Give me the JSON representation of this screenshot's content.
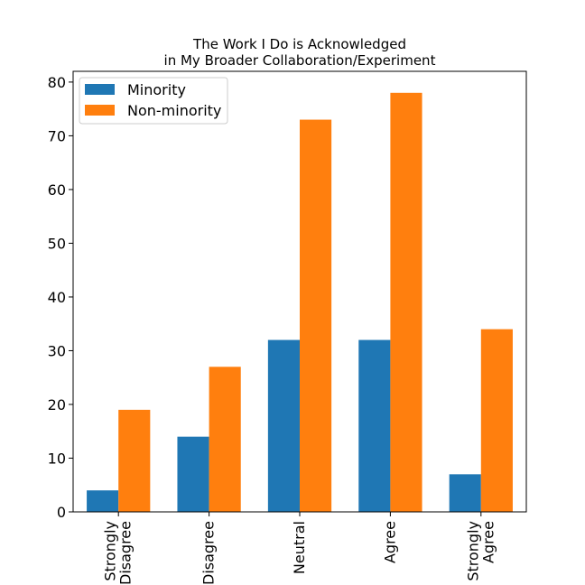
{
  "chart_data": {
    "type": "bar",
    "title_lines": [
      "The Work I Do is Acknowledged",
      "in My Broader Collaboration/Experiment"
    ],
    "categories": [
      [
        "Strongly",
        "Disagree"
      ],
      [
        "Disagree"
      ],
      [
        "Neutral"
      ],
      [
        "Agree"
      ],
      [
        "Strongly",
        "Agree"
      ]
    ],
    "series": [
      {
        "name": "Minority",
        "color": "#1f77b4",
        "values": [
          4,
          14,
          32,
          32,
          7
        ]
      },
      {
        "name": "Non-minority",
        "color": "#ff7f0e",
        "values": [
          19,
          27,
          73,
          78,
          34
        ]
      }
    ],
    "xlabel": "",
    "ylabel": "",
    "ylim": [
      0,
      82
    ],
    "yticks": [
      0,
      10,
      20,
      30,
      40,
      50,
      60,
      70,
      80
    ],
    "grid": false,
    "legend_position": "top-left"
  }
}
